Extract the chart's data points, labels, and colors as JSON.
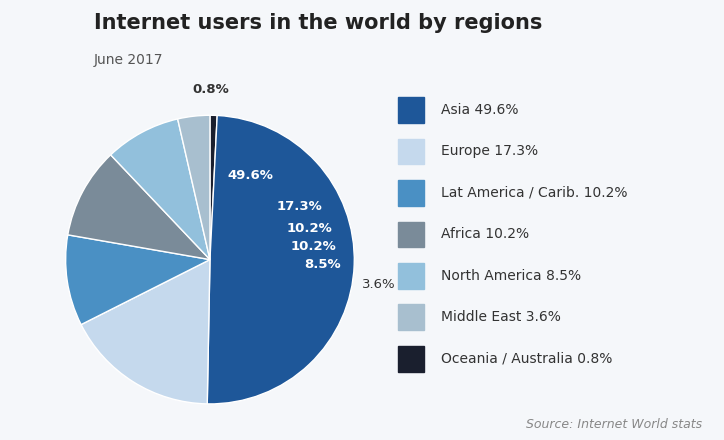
{
  "title": "Internet users in the world by regions",
  "subtitle": "June 2017",
  "source": "Source: Internet World stats",
  "labels": [
    "Asia",
    "Europe",
    "Lat America / Carib.",
    "Africa",
    "North America",
    "Middle East",
    "Oceania / Australia"
  ],
  "values": [
    49.6,
    17.3,
    10.2,
    10.2,
    8.5,
    3.6,
    0.8
  ],
  "colors": [
    "#1e5799",
    "#c5d9ed",
    "#4a90c4",
    "#7a8b99",
    "#92c0dc",
    "#a8bfcf",
    "#1a1f2e"
  ],
  "pct_labels": [
    "49.6%",
    "17.3%",
    "10.2%",
    "10.2%",
    "8.5%",
    "3.6%",
    "0.8%"
  ],
  "legend_labels": [
    "Asia 49.6%",
    "Europe 17.3%",
    "Lat America / Carib. 10.2%",
    "Africa 10.2%",
    "North America 8.5%",
    "Middle East 3.6%",
    "Oceania / Australia 0.8%"
  ],
  "background_color": "#f5f7fa",
  "title_fontsize": 15,
  "subtitle_fontsize": 10,
  "label_fontsize": 9.5,
  "legend_fontsize": 10,
  "source_fontsize": 9
}
